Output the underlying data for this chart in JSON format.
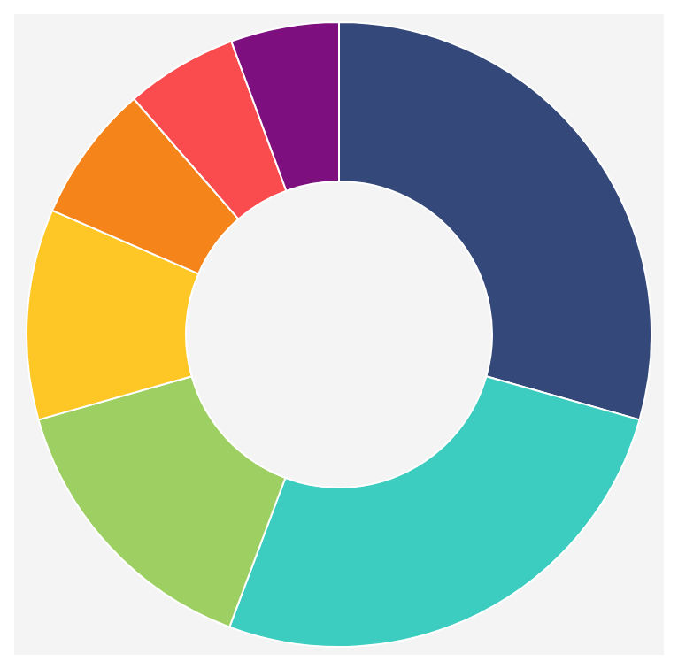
{
  "chart_data": {
    "type": "donut",
    "categories": [
      null,
      null,
      null,
      null,
      null,
      null,
      null
    ],
    "values": [
      29.4,
      26.3,
      14.9,
      10.9,
      7.1,
      5.8,
      5.6
    ],
    "colors": [
      "#34497a",
      "#3ccdc0",
      "#9dcf62",
      "#ffc726",
      "#f5841b",
      "#fa4b4e",
      "#7e0f7e"
    ]
  }
}
